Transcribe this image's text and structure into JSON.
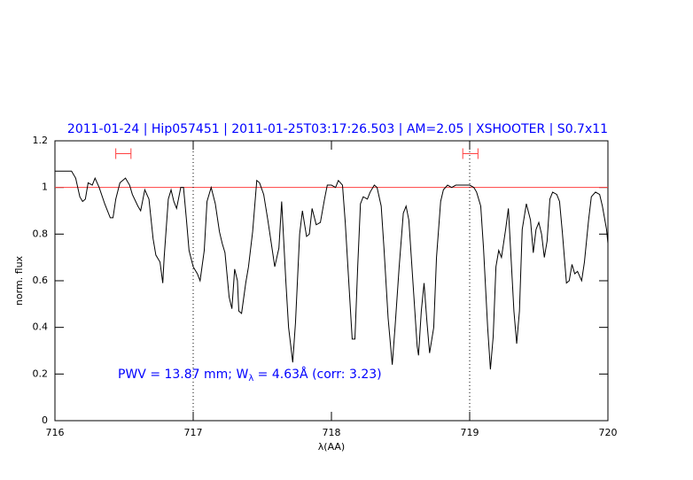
{
  "chart_data": {
    "type": "line",
    "title": "2011-01-24 | Hip057451 | 2011-01-25T03:17:26.503 | AM=2.05 | XSHOOTER | S0.7x11",
    "xlabel": "λ(AA)",
    "ylabel": "norm. flux",
    "annotation": [
      "PWV = 13.87 mm; W",
      "λ",
      " = 4.63Å  (corr: 3.23)"
    ],
    "color": "#000000",
    "x": [
      716.0,
      716.05,
      716.12,
      716.15,
      716.18,
      716.2,
      716.22,
      716.24,
      716.27,
      716.29,
      716.32,
      716.36,
      716.4,
      716.42,
      716.44,
      716.47,
      716.51,
      716.54,
      716.56,
      716.6,
      716.62,
      716.64,
      716.65,
      716.68,
      716.71,
      716.73,
      716.76,
      716.78,
      716.79,
      716.82,
      716.84,
      716.86,
      716.88,
      716.91,
      716.93,
      716.95,
      716.97,
      717.0,
      717.03,
      717.05,
      717.08,
      717.1,
      717.13,
      717.16,
      717.19,
      717.21,
      717.23,
      717.26,
      717.28,
      717.3,
      717.32,
      717.33,
      717.35,
      717.38,
      717.4,
      717.43,
      717.46,
      717.48,
      717.51,
      717.54,
      717.56,
      717.59,
      717.62,
      717.64,
      717.67,
      717.69,
      717.72,
      717.74,
      717.77,
      717.79,
      717.82,
      717.84,
      717.86,
      717.89,
      717.92,
      717.95,
      717.97,
      718.0,
      718.03,
      718.05,
      718.08,
      718.1,
      718.13,
      718.15,
      718.17,
      718.19,
      718.21,
      718.23,
      718.26,
      718.28,
      718.31,
      718.33,
      718.36,
      718.38,
      718.41,
      718.44,
      718.46,
      718.49,
      718.52,
      718.54,
      718.56,
      718.59,
      718.62,
      718.63,
      718.65,
      718.67,
      718.69,
      718.71,
      718.74,
      718.76,
      718.79,
      718.81,
      718.84,
      718.87,
      718.9,
      718.94,
      718.97,
      719.0,
      719.03,
      719.05,
      719.08,
      719.1,
      719.13,
      719.15,
      719.17,
      719.19,
      719.21,
      719.23,
      719.26,
      719.28,
      719.29,
      719.32,
      719.34,
      719.36,
      719.38,
      719.41,
      719.44,
      719.46,
      719.48,
      719.5,
      719.52,
      719.54,
      719.56,
      719.58,
      719.6,
      719.63,
      719.65,
      719.67,
      719.7,
      719.72,
      719.74,
      719.76,
      719.78,
      719.81,
      719.83,
      719.86,
      719.88,
      719.91,
      719.94,
      719.96,
      719.99,
      720.0
    ],
    "values": [
      1.07,
      1.07,
      1.07,
      1.04,
      0.96,
      0.94,
      0.95,
      1.02,
      1.01,
      1.04,
      1.0,
      0.93,
      0.87,
      0.87,
      0.95,
      1.02,
      1.04,
      1.01,
      0.97,
      0.92,
      0.9,
      0.96,
      0.99,
      0.95,
      0.78,
      0.71,
      0.68,
      0.59,
      0.7,
      0.95,
      0.99,
      0.94,
      0.91,
      1.0,
      1.0,
      0.87,
      0.73,
      0.66,
      0.63,
      0.6,
      0.73,
      0.94,
      1.0,
      0.93,
      0.81,
      0.76,
      0.72,
      0.53,
      0.48,
      0.65,
      0.6,
      0.47,
      0.46,
      0.59,
      0.66,
      0.81,
      1.03,
      1.02,
      0.97,
      0.86,
      0.78,
      0.66,
      0.74,
      0.94,
      0.6,
      0.4,
      0.25,
      0.42,
      0.8,
      0.9,
      0.79,
      0.8,
      0.91,
      0.84,
      0.85,
      0.95,
      1.01,
      1.01,
      1.0,
      1.03,
      1.01,
      0.85,
      0.55,
      0.35,
      0.35,
      0.66,
      0.93,
      0.96,
      0.95,
      0.98,
      1.01,
      1.0,
      0.92,
      0.74,
      0.44,
      0.24,
      0.4,
      0.66,
      0.89,
      0.92,
      0.86,
      0.59,
      0.32,
      0.28,
      0.47,
      0.59,
      0.43,
      0.29,
      0.4,
      0.7,
      0.94,
      0.99,
      1.01,
      1.0,
      1.01,
      1.01,
      1.01,
      1.01,
      1.0,
      0.98,
      0.92,
      0.74,
      0.4,
      0.22,
      0.36,
      0.66,
      0.73,
      0.7,
      0.82,
      0.91,
      0.8,
      0.47,
      0.33,
      0.47,
      0.82,
      0.93,
      0.86,
      0.72,
      0.82,
      0.85,
      0.8,
      0.7,
      0.77,
      0.95,
      0.98,
      0.97,
      0.94,
      0.81,
      0.59,
      0.6,
      0.67,
      0.63,
      0.64,
      0.6,
      0.68,
      0.86,
      0.96,
      0.98,
      0.97,
      0.92,
      0.82,
      0.76
    ],
    "hlines": [
      1
    ],
    "hline_color": "#ff4040",
    "vlines": [
      717,
      719
    ],
    "windows": [
      [
        716.44,
        716.55
      ],
      [
        718.95,
        719.06
      ]
    ],
    "window_y": 1.145,
    "window_color": "#ff4040",
    "xlim": [
      716,
      720
    ],
    "ylim": [
      0,
      1.2
    ],
    "xticks": [
      716,
      717,
      718,
      719,
      720
    ],
    "yticks": [
      0,
      0.2,
      0.4,
      0.6,
      0.8,
      1,
      1.2
    ]
  }
}
